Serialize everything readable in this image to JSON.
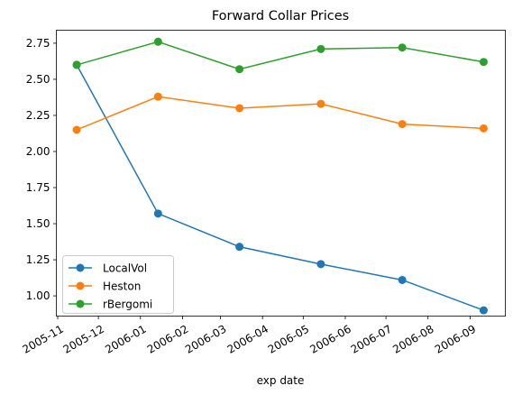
{
  "chart_data": {
    "type": "line",
    "title": "Forward Collar Prices",
    "xlabel": "exp date",
    "ylabel": "",
    "x": [
      "2005-11-15",
      "2006-01-14",
      "2006-03-15",
      "2006-05-14",
      "2006-07-13",
      "2006-09-11"
    ],
    "xlim": [
      "2005-10-31",
      "2006-09-27"
    ],
    "x_ticks": [
      "2005-11",
      "2005-12",
      "2006-01",
      "2006-02",
      "2006-03",
      "2006-04",
      "2006-05",
      "2006-06",
      "2006-07",
      "2006-08",
      "2006-09"
    ],
    "x_tick_dates": [
      "2005-11-01",
      "2005-12-01",
      "2006-01-01",
      "2006-02-01",
      "2006-03-01",
      "2006-04-01",
      "2006-05-01",
      "2006-06-01",
      "2006-07-01",
      "2006-08-01",
      "2006-09-01"
    ],
    "y_ticks": [
      "1.00",
      "1.25",
      "1.50",
      "1.75",
      "2.00",
      "2.25",
      "2.50",
      "2.75"
    ],
    "y_tick_values": [
      1.0,
      1.25,
      1.5,
      1.75,
      2.0,
      2.25,
      2.5,
      2.75
    ],
    "ylim": [
      0.86,
      2.84
    ],
    "grid": false,
    "legend_position": "lower-left",
    "series": [
      {
        "name": "LocalVol",
        "color": "#1f77b4",
        "values": [
          2.6,
          1.57,
          1.34,
          1.22,
          1.11,
          0.9
        ]
      },
      {
        "name": "Heston",
        "color": "#ff7f0e",
        "values": [
          2.15,
          2.38,
          2.3,
          2.33,
          2.19,
          2.16
        ]
      },
      {
        "name": "rBergomi",
        "color": "#2ca02c",
        "values": [
          2.6,
          2.76,
          2.57,
          2.71,
          2.72,
          2.62
        ]
      }
    ]
  }
}
